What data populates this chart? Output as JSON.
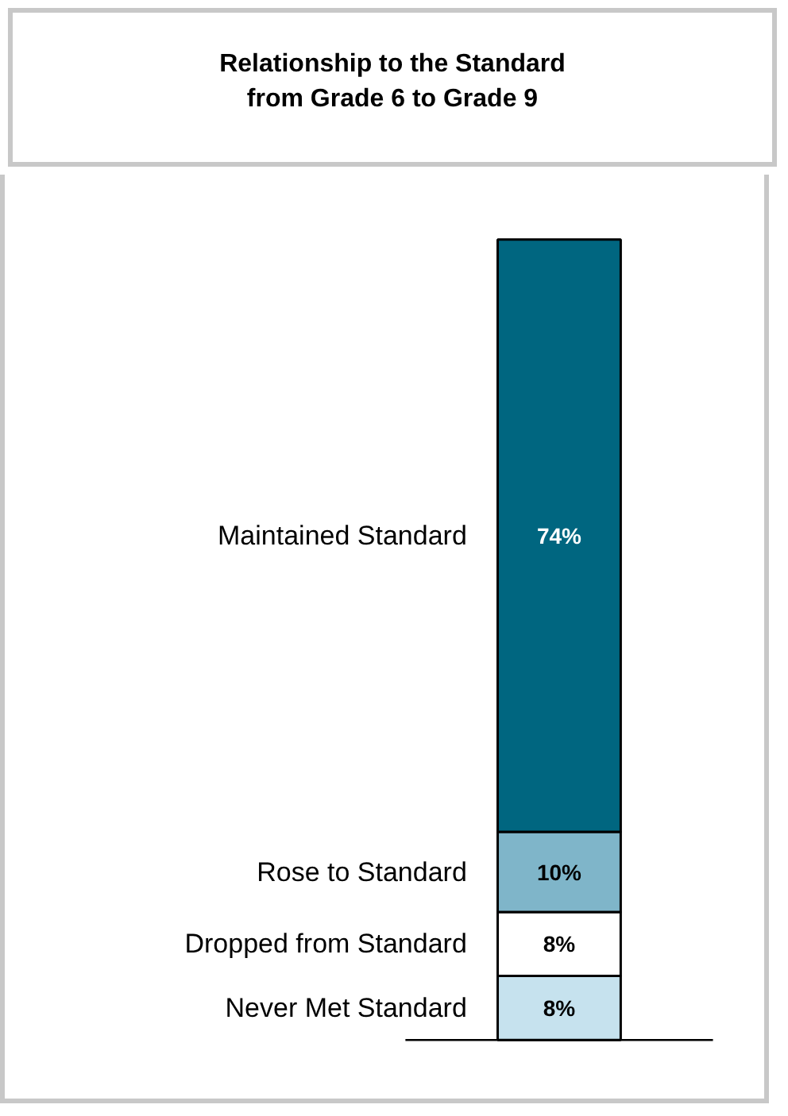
{
  "chart_data": {
    "type": "bar",
    "title": "Relationship to the Standard\nfrom Grade 6 to Grade 9",
    "categories": [
      null
    ],
    "stacked": true,
    "series": [
      {
        "name": "Never Met Standard",
        "color": "#c6e2ee",
        "values": [
          8
        ],
        "value_labels": [
          "8%"
        ]
      },
      {
        "name": "Dropped from Standard",
        "color": "#ffffff",
        "values": [
          8
        ],
        "value_labels": [
          "8%"
        ]
      },
      {
        "name": "Rose to Standard",
        "color": "#7fb5c9",
        "values": [
          10
        ],
        "value_labels": [
          "10%"
        ]
      },
      {
        "name": "Maintained Standard",
        "color": "#006680",
        "values": [
          74
        ],
        "value_labels": [
          "74%"
        ]
      }
    ]
  }
}
